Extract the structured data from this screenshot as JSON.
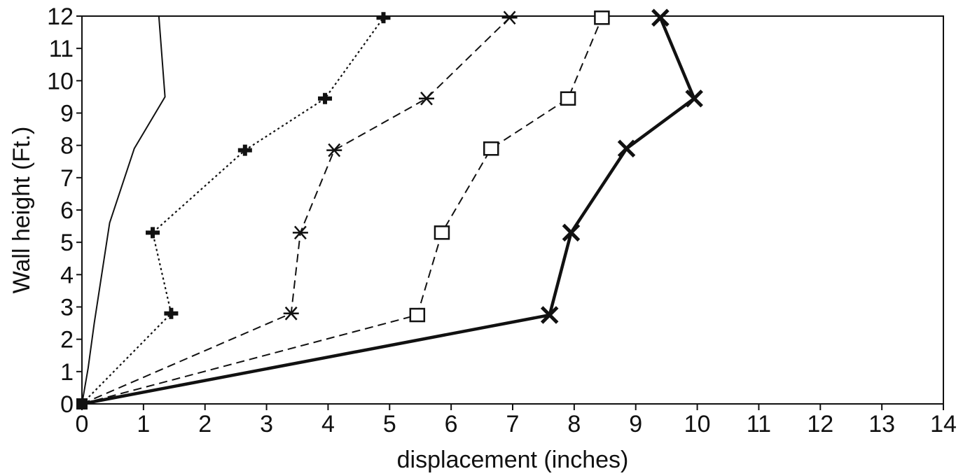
{
  "chart_data": {
    "type": "line",
    "title": "",
    "xlabel": "displacement (inches)",
    "ylabel": "Wall height (Ft.)",
    "xlim": [
      0,
      14
    ],
    "ylim": [
      0,
      12
    ],
    "x_ticks": [
      "0",
      "1",
      "2",
      "3",
      "4",
      "5",
      "6",
      "7",
      "8",
      "9",
      "10",
      "11",
      "12",
      "13",
      "14"
    ],
    "y_ticks": [
      "0",
      "1",
      "2",
      "3",
      "4",
      "5",
      "6",
      "7",
      "8",
      "9",
      "10",
      "11",
      "12"
    ],
    "grid": false,
    "legend": "none",
    "series": [
      {
        "style": "solid thin",
        "marker": "none",
        "color": "#111111",
        "points": [
          [
            0,
            0
          ],
          [
            0.1,
            1.1
          ],
          [
            0.2,
            2.5
          ],
          [
            0.45,
            5.6
          ],
          [
            0.85,
            7.9
          ],
          [
            1.35,
            9.5
          ],
          [
            1.25,
            12
          ]
        ]
      },
      {
        "style": "dotted",
        "marker": "plus",
        "color": "#111111",
        "points": [
          [
            0,
            0
          ],
          [
            1.45,
            2.8
          ],
          [
            1.15,
            5.3
          ],
          [
            2.65,
            7.85
          ],
          [
            3.95,
            9.45
          ],
          [
            4.9,
            11.95
          ]
        ]
      },
      {
        "style": "dashed",
        "marker": "asterisk",
        "color": "#111111",
        "points": [
          [
            0,
            0
          ],
          [
            3.4,
            2.8
          ],
          [
            3.55,
            5.3
          ],
          [
            4.1,
            7.85
          ],
          [
            5.6,
            9.45
          ],
          [
            6.95,
            11.95
          ]
        ]
      },
      {
        "style": "dashed",
        "marker": "square",
        "color": "#111111",
        "points": [
          [
            0,
            0
          ],
          [
            5.45,
            2.75
          ],
          [
            5.85,
            5.3
          ],
          [
            6.65,
            7.9
          ],
          [
            7.9,
            9.45
          ],
          [
            8.45,
            11.95
          ]
        ]
      },
      {
        "style": "solid thick",
        "marker": "x",
        "color": "#111111",
        "points": [
          [
            0,
            0
          ],
          [
            7.6,
            2.75
          ],
          [
            7.95,
            5.3
          ],
          [
            8.85,
            7.9
          ],
          [
            9.95,
            9.45
          ],
          [
            9.4,
            11.95
          ]
        ]
      }
    ]
  }
}
